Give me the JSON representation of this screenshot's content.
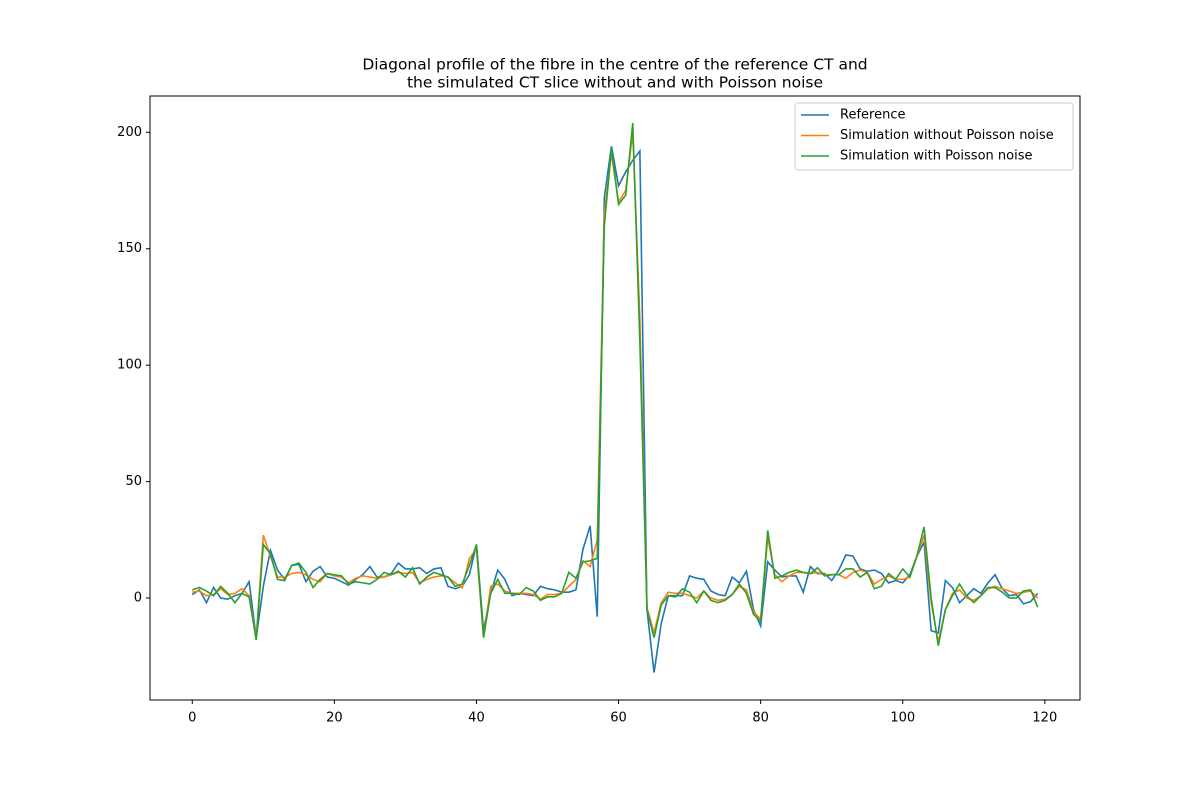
{
  "chart_data": {
    "type": "line",
    "title": [
      "Diagonal profile of the fibre in the centre of the reference CT and",
      "the simulated CT slice without and with Poisson noise"
    ],
    "x": [
      0,
      1,
      2,
      3,
      4,
      5,
      6,
      7,
      8,
      9,
      10,
      11,
      12,
      13,
      14,
      15,
      16,
      17,
      18,
      19,
      20,
      21,
      22,
      23,
      24,
      25,
      26,
      27,
      28,
      29,
      30,
      31,
      32,
      33,
      34,
      35,
      36,
      37,
      38,
      39,
      40,
      41,
      42,
      43,
      44,
      45,
      46,
      47,
      48,
      49,
      50,
      51,
      52,
      53,
      54,
      55,
      56,
      57,
      58,
      59,
      60,
      61,
      62,
      63,
      64,
      65,
      66,
      67,
      68,
      69,
      70,
      71,
      72,
      73,
      74,
      75,
      76,
      77,
      78,
      79,
      80,
      81,
      82,
      83,
      84,
      85,
      86,
      87,
      88,
      89,
      90,
      91,
      92,
      93,
      94,
      95,
      96,
      97,
      98,
      99,
      100,
      101,
      102,
      103,
      104,
      105,
      106,
      107,
      108,
      109,
      110,
      111,
      112,
      113,
      114,
      115,
      116,
      117,
      118,
      119
    ],
    "series": [
      {
        "name": "Reference",
        "color": "#1f77b4",
        "values": [
          1.5,
          3.5,
          -2,
          4.5,
          0,
          -0.5,
          1,
          2,
          7,
          -17,
          5,
          20.5,
          12,
          8,
          14,
          14.5,
          7,
          11.5,
          13.5,
          9,
          8.5,
          7,
          5.5,
          8,
          10,
          13.5,
          9,
          9,
          10.5,
          15,
          12.5,
          12.5,
          13,
          10.5,
          12.5,
          13,
          5,
          4,
          5,
          10,
          23,
          -14,
          2,
          12,
          8,
          1,
          2,
          1.5,
          1,
          5,
          4,
          3.5,
          2.5,
          2.5,
          3.5,
          21,
          31,
          -8,
          172,
          194,
          177,
          183,
          188,
          192,
          -5,
          -32,
          -11,
          1,
          1,
          1,
          9.5,
          8.5,
          8,
          3,
          1.5,
          1,
          9,
          6.5,
          11.5,
          -5,
          -12,
          15.5,
          12,
          9,
          9.5,
          9.5,
          2.5,
          13.5,
          10.5,
          10.5,
          7.5,
          12,
          18.5,
          18,
          12.5,
          11.5,
          12,
          10.5,
          6.5,
          7.5,
          6.5,
          10,
          18,
          24,
          -14,
          -15,
          7.5,
          4.5,
          -2,
          1,
          4,
          2,
          6.5,
          10,
          4,
          1,
          1.5,
          -2.5,
          -1.5,
          2
        ]
      },
      {
        "name": "Simulation without Poisson noise",
        "color": "#ff7f0e",
        "values": [
          2.5,
          3,
          1,
          1.5,
          4,
          1.5,
          2,
          4,
          1,
          -17,
          27,
          18,
          9,
          9,
          10.5,
          11,
          10,
          8,
          7,
          10.5,
          9.5,
          9,
          6.5,
          8.5,
          9.5,
          9,
          8.5,
          9,
          10,
          11,
          10.5,
          11,
          6.5,
          8,
          9,
          9.5,
          9,
          6.5,
          4.5,
          17,
          21,
          -17,
          5,
          6,
          3,
          2,
          2,
          2,
          1.5,
          -0.5,
          1.5,
          1.5,
          2,
          5,
          8,
          16,
          13.5,
          25,
          165,
          191,
          170,
          175,
          200,
          120,
          -4,
          -15,
          -2,
          2.5,
          2,
          2,
          1,
          0,
          3,
          0,
          -1,
          -0.5,
          1.5,
          5,
          3.5,
          -6,
          -9,
          26,
          10,
          7,
          9.5,
          11,
          11,
          10.5,
          11,
          10,
          10,
          10,
          8.5,
          11,
          12,
          11,
          6,
          8,
          9.5,
          8,
          8,
          9,
          18,
          27,
          -2,
          -19,
          -5,
          2,
          3.5,
          0,
          -1,
          1,
          4,
          5,
          4,
          3,
          2,
          2.5,
          3,
          0
        ]
      },
      {
        "name": "Simulation with Poisson noise",
        "color": "#2ca02c",
        "values": [
          3.5,
          4.5,
          3,
          1,
          5,
          2,
          -2,
          2,
          0.5,
          -18,
          23,
          19,
          8,
          7.5,
          14,
          15,
          11,
          4.5,
          8,
          10.5,
          10,
          9.5,
          6,
          7,
          6.5,
          6,
          8,
          11,
          10,
          11.5,
          9,
          13,
          6,
          9,
          11,
          10,
          9,
          5,
          6,
          14,
          23,
          -17,
          2,
          8,
          2,
          2,
          1.5,
          4.5,
          3,
          -1,
          0.5,
          0.5,
          2,
          11,
          8.5,
          15.5,
          16,
          17,
          160,
          193,
          169,
          173,
          204,
          110,
          -5,
          -17,
          -3,
          1,
          0.5,
          4,
          2.5,
          -2,
          3,
          -1,
          -2,
          -1,
          1.5,
          6,
          2,
          -7,
          -10,
          29,
          8.5,
          9.5,
          11,
          12,
          11,
          10.5,
          13,
          9.5,
          10,
          10,
          12.5,
          12.5,
          9,
          11,
          4,
          5,
          10.5,
          8,
          12.5,
          9,
          18,
          30.5,
          0,
          -20.5,
          -5,
          1,
          6,
          1,
          -2,
          1,
          4.5,
          4.5,
          2.5,
          0,
          0,
          3,
          3.5,
          -4
        ]
      }
    ],
    "xlim": [
      -5.95,
      124.95
    ],
    "ylim": [
      -43.8,
      215.6
    ],
    "xticks": [
      0,
      20,
      40,
      60,
      80,
      100,
      120
    ],
    "yticks": [
      0,
      50,
      100,
      150,
      200
    ],
    "legend": "upper right"
  }
}
